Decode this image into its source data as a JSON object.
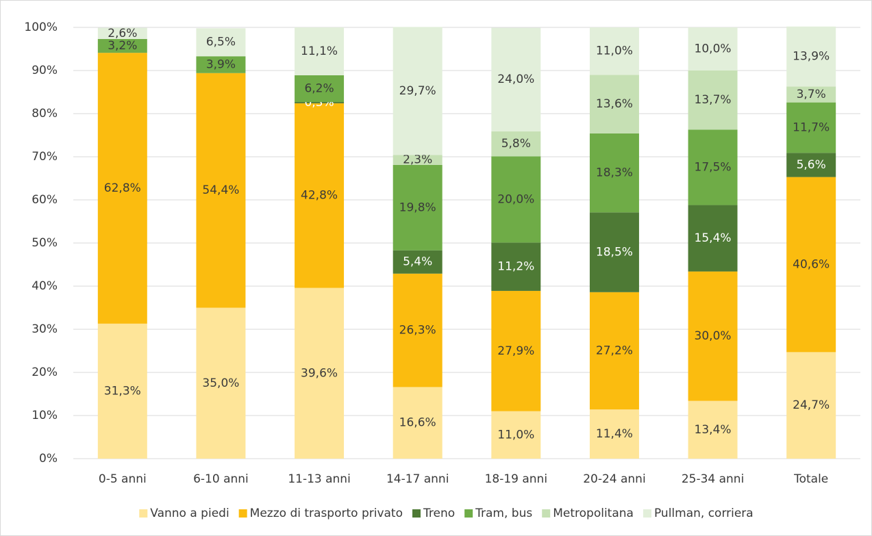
{
  "chart_data": {
    "type": "stacked_bar",
    "categories": [
      "0-5 anni",
      "6-10 anni",
      "11-13 anni",
      "14-17 anni",
      "18-19 anni",
      "20-24 anni",
      "25-34 anni",
      "Totale"
    ],
    "series": [
      {
        "name": "Vanno a piedi",
        "color": "#fee599",
        "values": [
          31.3,
          35.0,
          39.6,
          16.6,
          11.0,
          11.4,
          13.4,
          24.7
        ],
        "value_labels": [
          "31,3%",
          "35,0%",
          "39,6%",
          "16,6%",
          "11,0%",
          "11,4%",
          "13,4%",
          "24,7%"
        ]
      },
      {
        "name": "Mezzo di trasporto privato",
        "color": "#fbbc0f",
        "values": [
          62.8,
          54.4,
          42.8,
          26.3,
          27.9,
          27.2,
          30.0,
          40.6
        ],
        "value_labels": [
          "62,8%",
          "54,4%",
          "42,8%",
          "26,3%",
          "27,9%",
          "27,2%",
          "30,0%",
          "40,6%"
        ]
      },
      {
        "name": "Treno",
        "color": "#4e7a35",
        "values": [
          null,
          null,
          0.3,
          5.4,
          11.2,
          18.5,
          15.4,
          5.6
        ],
        "value_labels": [
          null,
          null,
          "0,3%",
          "5,4%",
          "11,2%",
          "18,5%",
          "15,4%",
          "5,6%"
        ]
      },
      {
        "name": "Tram, bus",
        "color": "#6fac47",
        "values": [
          3.2,
          3.9,
          6.2,
          19.8,
          20.0,
          18.3,
          17.5,
          11.7
        ],
        "value_labels": [
          "3,2%",
          "3,9%",
          "6,2%",
          "19,8%",
          "20,0%",
          "18,3%",
          "17,5%",
          "11,7%"
        ]
      },
      {
        "name": "Metropolitana",
        "color": "#c6e0b4",
        "values": [
          null,
          null,
          null,
          2.3,
          5.8,
          13.6,
          13.7,
          3.7
        ],
        "value_labels": [
          null,
          null,
          null,
          "2,3%",
          "5,8%",
          "13,6%",
          "13,7%",
          "3,7%"
        ]
      },
      {
        "name": "Pullman, corriera",
        "color": "#e2efda",
        "values": [
          2.6,
          6.5,
          11.1,
          29.7,
          24.0,
          11.0,
          10.0,
          13.9
        ],
        "value_labels": [
          "2,6%",
          "6,5%",
          "11,1%",
          "29,7%",
          "24,0%",
          "11,0%",
          "10,0%",
          "13,9%"
        ]
      }
    ],
    "ylim": [
      0,
      100
    ],
    "yticks": [
      {
        "value": 0,
        "label": "0%"
      },
      {
        "value": 10,
        "label": "10%"
      },
      {
        "value": 20,
        "label": "20%"
      },
      {
        "value": 30,
        "label": "30%"
      },
      {
        "value": 40,
        "label": "40%"
      },
      {
        "value": 50,
        "label": "50%"
      },
      {
        "value": 60,
        "label": "60%"
      },
      {
        "value": 70,
        "label": "70%"
      },
      {
        "value": 80,
        "label": "80%"
      },
      {
        "value": 90,
        "label": "90%"
      },
      {
        "value": 100,
        "label": "100%"
      }
    ],
    "grid": true,
    "legend": "bottom"
  }
}
